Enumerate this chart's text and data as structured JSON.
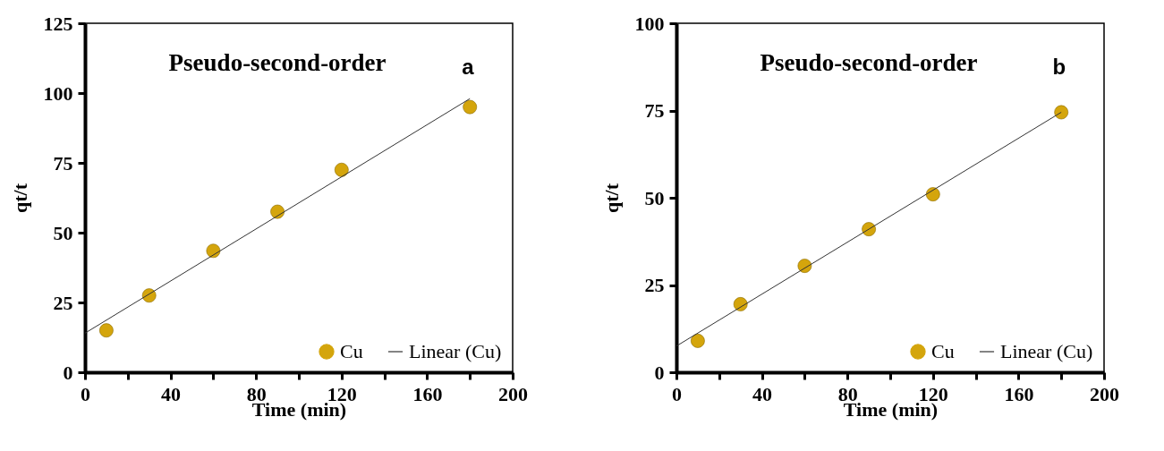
{
  "chart_data": [
    {
      "type": "scatter",
      "title": "Pseudo-second-order",
      "annotations": [
        "a"
      ],
      "xlabel": "Time (min)",
      "ylabel": "qt/t",
      "xlim": [
        0,
        200
      ],
      "ylim": [
        0,
        125
      ],
      "xticks": [
        0,
        {
          "value": 20,
          "label": null
        },
        40,
        {
          "value": 60,
          "label": null
        },
        80,
        {
          "value": 100,
          "label": null
        },
        120,
        {
          "value": 140,
          "label": null
        },
        160,
        {
          "value": 180,
          "label": null
        },
        200
      ],
      "yticks": [
        0,
        25,
        50,
        75,
        100,
        125
      ],
      "grid": false,
      "legend": "bottom right",
      "series": [
        {
          "name": "Cu",
          "type": "scatter",
          "marker": "circle",
          "color": "#d4a50c",
          "x": [
            10,
            30,
            60,
            90,
            120,
            180
          ],
          "values": [
            15,
            27.5,
            43.5,
            57.5,
            72.5,
            95
          ]
        },
        {
          "name": "Linear (Cu)",
          "type": "line",
          "color": "#333333",
          "x": [
            0,
            180
          ],
          "values": [
            14,
            98
          ]
        }
      ]
    },
    {
      "type": "scatter",
      "title": "Pseudo-second-order",
      "annotations": [
        "b"
      ],
      "xlabel": "Time (min)",
      "ylabel": "qt/t",
      "xlim": [
        0,
        200
      ],
      "ylim": [
        0,
        100
      ],
      "xticks": [
        0,
        {
          "value": 20,
          "label": null
        },
        40,
        {
          "value": 60,
          "label": null
        },
        80,
        {
          "value": 100,
          "label": null
        },
        120,
        {
          "value": 140,
          "label": null
        },
        160,
        {
          "value": 180,
          "label": null
        },
        200
      ],
      "yticks": [
        0,
        25,
        50,
        75,
        100
      ],
      "grid": false,
      "legend": "bottom right",
      "series": [
        {
          "name": "Cu",
          "type": "scatter",
          "marker": "circle",
          "color": "#d4a50c",
          "x": [
            10,
            30,
            60,
            90,
            120,
            180
          ],
          "values": [
            9,
            19.5,
            30.5,
            41,
            51,
            74.5
          ]
        },
        {
          "name": "Linear (Cu)",
          "type": "line",
          "color": "#333333",
          "x": [
            0,
            180
          ],
          "values": [
            7.5,
            74.5
          ]
        }
      ]
    }
  ]
}
